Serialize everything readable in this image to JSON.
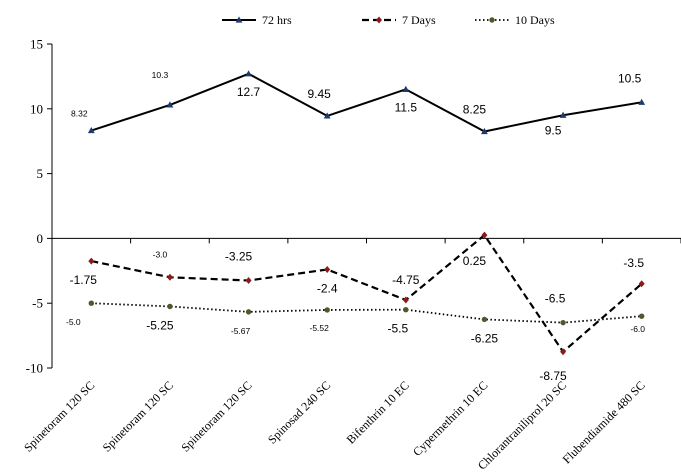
{
  "chart_data": {
    "type": "line",
    "categories": [
      "Spinetoram 120 SC",
      "Spinetoram 120 SC",
      "Spinetoram 120 SC",
      "Spinosad 240 SC",
      "Bifenthrin 10 EC",
      "Cypermethrin 10 EC",
      "Chlorantraniliprol 20 SC",
      "Flubendiamide 480 SC"
    ],
    "ylim": [
      -10,
      15
    ],
    "yticks": [
      "-10",
      "-5",
      "0",
      "5",
      "10",
      "15"
    ],
    "legend_position": "top",
    "series": [
      {
        "name": "72 hrs",
        "style": "solid",
        "marker": "triangle",
        "color": "#000000",
        "marker_color": "#1f3b6e",
        "values": [
          8.32,
          10.3,
          12.7,
          9.45,
          11.5,
          8.25,
          9.5,
          10.5
        ],
        "labels": [
          "8.32",
          "10.3",
          "12.7",
          "9.45",
          "11.5",
          "8.25",
          "9.5",
          "10.5"
        ]
      },
      {
        "name": "7 Days",
        "style": "dashed",
        "marker": "diamond",
        "color": "#000000",
        "marker_color": "#8b1a1a",
        "values": [
          -1.75,
          -3.0,
          -3.25,
          -2.4,
          -4.75,
          0.25,
          -8.75,
          -3.5
        ],
        "labels": [
          "-1.75",
          "-3.0",
          "-3.25",
          "-2.4",
          "-4.75",
          "0.25",
          "-8.75",
          "-3.5"
        ]
      },
      {
        "name": "10 Days",
        "style": "dotted",
        "marker": "circle",
        "color": "#000000",
        "marker_color": "#4a5a2a",
        "values": [
          -5.0,
          -5.25,
          -5.67,
          -5.52,
          -5.5,
          -6.25,
          -6.5,
          -6.0
        ],
        "labels": [
          "-5.0",
          "-5.25",
          "-5.67",
          "-5.52",
          "-5.5",
          "-6.25",
          "-6.5",
          "-6.0"
        ]
      }
    ]
  }
}
